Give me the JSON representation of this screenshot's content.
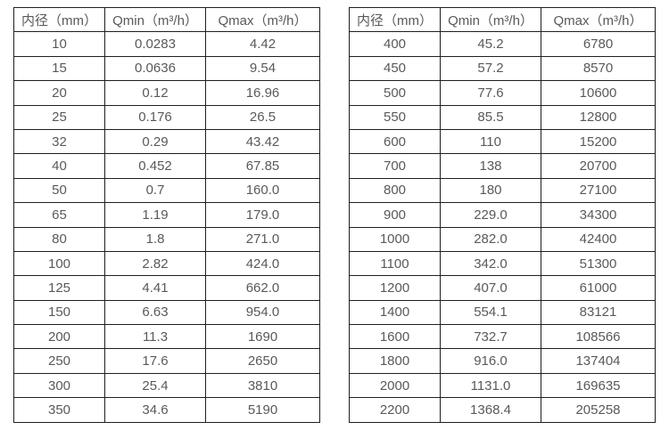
{
  "colors": {
    "border": "#1f1f1f",
    "text": "#595959",
    "background": "#ffffff"
  },
  "tables": [
    {
      "name": "flow-table-left",
      "headers": [
        "内径（mm）",
        "Qmin（m³/h）",
        "Qmax（m³/h）"
      ],
      "rows": [
        [
          "10",
          "0.0283",
          "4.42"
        ],
        [
          "15",
          "0.0636",
          "9.54"
        ],
        [
          "20",
          "0.12",
          "16.96"
        ],
        [
          "25",
          "0.176",
          "26.5"
        ],
        [
          "32",
          "0.29",
          "43.42"
        ],
        [
          "40",
          "0.452",
          "67.85"
        ],
        [
          "50",
          "0.7",
          "160.0"
        ],
        [
          "65",
          "1.19",
          "179.0"
        ],
        [
          "80",
          "1.8",
          "271.0"
        ],
        [
          "100",
          "2.82",
          "424.0"
        ],
        [
          "125",
          "4.41",
          "662.0"
        ],
        [
          "150",
          "6.63",
          "954.0"
        ],
        [
          "200",
          "11.3",
          "1690"
        ],
        [
          "250",
          "17.6",
          "2650"
        ],
        [
          "300",
          "25.4",
          "3810"
        ],
        [
          "350",
          "34.6",
          "5190"
        ]
      ]
    },
    {
      "name": "flow-table-right",
      "headers": [
        "内径（mm）",
        "Qmin（m³/h）",
        "Qmax（m³/h）"
      ],
      "rows": [
        [
          "400",
          "45.2",
          "6780"
        ],
        [
          "450",
          "57.2",
          "8570"
        ],
        [
          "500",
          "77.6",
          "10600"
        ],
        [
          "550",
          "85.5",
          "12800"
        ],
        [
          "600",
          "110",
          "15200"
        ],
        [
          "700",
          "138",
          "20700"
        ],
        [
          "800",
          "180",
          "27100"
        ],
        [
          "900",
          "229.0",
          "34300"
        ],
        [
          "1000",
          "282.0",
          "42400"
        ],
        [
          "1100",
          "342.0",
          "51300"
        ],
        [
          "1200",
          "407.0",
          "61000"
        ],
        [
          "1400",
          "554.1",
          "83121"
        ],
        [
          "1600",
          "732.7",
          "108566"
        ],
        [
          "1800",
          "916.0",
          "137404"
        ],
        [
          "2000",
          "1131.0",
          "169635"
        ],
        [
          "2200",
          "1368.4",
          "205258"
        ]
      ]
    }
  ]
}
